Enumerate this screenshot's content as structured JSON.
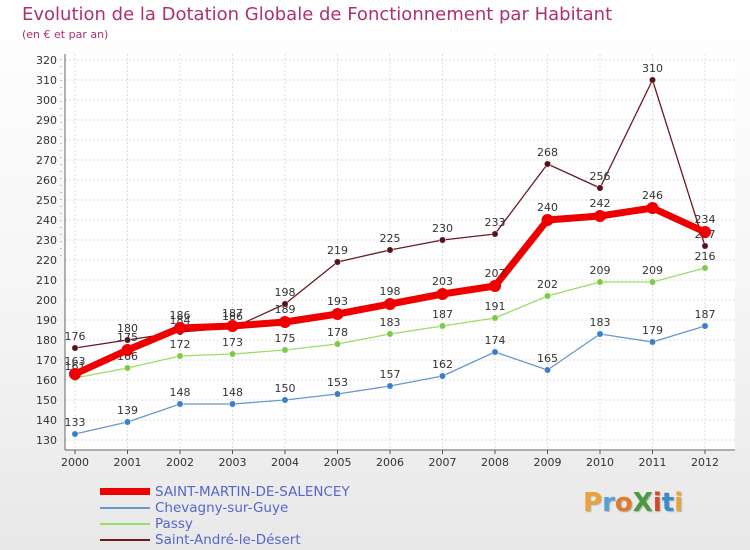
{
  "page": {
    "title": "Evolution de la Dotation Globale de Fonctionnement par Habitant",
    "subtitle": "(en € et par an)"
  },
  "logo": {
    "text": "ProXiti",
    "letters": [
      "P",
      "r",
      "o",
      "X",
      "i",
      "t",
      "i"
    ],
    "colors": [
      "#e8a33a",
      "#5aa0d8",
      "#e07a2c",
      "#4a9a3e",
      "#d04a2a",
      "#3a8cc8",
      "#e8a33a"
    ]
  },
  "chart_data": {
    "type": "line",
    "title": "Evolution de la Dotation Globale de Fonctionnement par Habitant",
    "subtitle": "(en € et par an)",
    "xlabel": "",
    "ylabel": "",
    "categories": [
      "2000",
      "2001",
      "2002",
      "2003",
      "2004",
      "2005",
      "2006",
      "2007",
      "2008",
      "2009",
      "2010",
      "2011",
      "2012"
    ],
    "ylim": [
      130,
      320
    ],
    "yticks": [
      130,
      140,
      150,
      160,
      170,
      180,
      190,
      200,
      210,
      220,
      230,
      240,
      250,
      260,
      270,
      280,
      290,
      300,
      310,
      320
    ],
    "grid": true,
    "legend_position": "bottom-left",
    "series": [
      {
        "name": "Saint-André-le-Désert",
        "color": "#6b1a22",
        "point_color": "#5a1018",
        "width": "thin",
        "values": [
          176,
          180,
          184,
          186,
          198,
          219,
          225,
          230,
          233,
          268,
          256,
          310,
          227
        ]
      },
      {
        "name": "Passy",
        "color": "#99dd66",
        "point_color": "#7acc44",
        "width": "thin",
        "values": [
          161,
          166,
          172,
          173,
          175,
          178,
          183,
          187,
          191,
          202,
          209,
          209,
          216
        ]
      },
      {
        "name": "Chevagny-sur-Guye",
        "color": "#6699cc",
        "point_color": "#3a80c8",
        "width": "thin",
        "values": [
          133,
          139,
          148,
          148,
          150,
          153,
          157,
          162,
          174,
          165,
          183,
          179,
          187
        ]
      },
      {
        "name": "SAINT-MARTIN-DE-SALENCEY",
        "color": "#ee0000",
        "point_color": "#ee0000",
        "width": "thick",
        "values": [
          163,
          175,
          186,
          187,
          189,
          193,
          198,
          203,
          207,
          240,
          242,
          246,
          234
        ]
      }
    ],
    "legend_order": [
      "SAINT-MARTIN-DE-SALENCEY",
      "Chevagny-sur-Guye",
      "Passy",
      "Saint-André-le-Désert"
    ]
  }
}
